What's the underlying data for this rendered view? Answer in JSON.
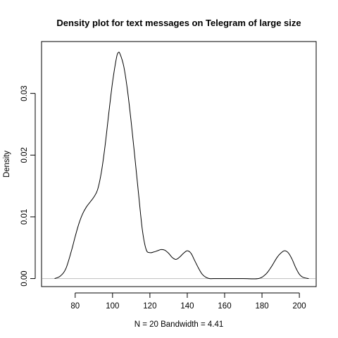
{
  "chart_data": {
    "type": "line",
    "title": "Density plot for text messages on Telegram of large size",
    "xlabel": "N = 20   Bandwidth = 4.41",
    "ylabel": "Density",
    "xlim": [
      62,
      209
    ],
    "ylim": [
      -0.0013,
      0.0384
    ],
    "x_ticks": [
      80,
      100,
      120,
      140,
      160,
      180,
      200
    ],
    "x_tick_labels": [
      "80",
      "100",
      "120",
      "140",
      "160",
      "180",
      "200"
    ],
    "y_ticks": [
      0.0,
      0.01,
      0.02,
      0.03
    ],
    "y_tick_labels": [
      "0.00",
      "0.01",
      "0.02",
      "0.03"
    ],
    "baseline": 0,
    "baseline_color": "#bebebe",
    "line_color": "#000000",
    "grid": false,
    "series": [
      {
        "x": [
          69,
          72,
          75,
          78,
          80,
          82,
          84,
          86,
          88,
          90,
          92,
          94,
          96,
          98,
          100,
          102,
          103,
          104,
          106,
          108,
          110,
          112,
          114,
          116,
          118,
          120,
          122,
          124,
          126,
          128,
          130,
          132,
          134,
          136,
          138,
          140,
          142,
          144,
          146,
          148,
          150,
          152,
          154,
          160,
          170,
          178,
          182,
          185,
          188,
          190,
          192,
          194,
          196,
          198,
          200,
          202,
          205
        ],
        "y": [
          0.0,
          0.0004,
          0.0016,
          0.0045,
          0.0068,
          0.0089,
          0.0105,
          0.0116,
          0.0124,
          0.0132,
          0.0144,
          0.0172,
          0.0215,
          0.0268,
          0.0318,
          0.0356,
          0.0366,
          0.0364,
          0.0344,
          0.0305,
          0.0253,
          0.0195,
          0.0135,
          0.0078,
          0.0047,
          0.0042,
          0.0043,
          0.0045,
          0.0047,
          0.0046,
          0.0041,
          0.0034,
          0.0031,
          0.0035,
          0.0041,
          0.0045,
          0.0041,
          0.0029,
          0.0017,
          0.0007,
          0.0002,
          0.0,
          0.0,
          0.0,
          0.0,
          0.0,
          0.0007,
          0.0019,
          0.0034,
          0.0041,
          0.0045,
          0.0042,
          0.0032,
          0.0018,
          0.0007,
          0.0002,
          0.0
        ]
      }
    ]
  }
}
